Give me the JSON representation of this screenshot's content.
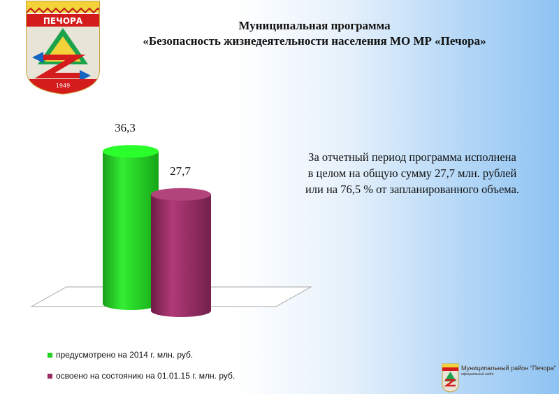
{
  "header": {
    "emblem_text": "ПЕЧОРА",
    "emblem_year": "1949",
    "title_line1": "Муниципальная программа",
    "title_line2": "«Безопасность жизнедеятельности населения  МО МР «Печора»"
  },
  "chart_data": {
    "type": "bar",
    "style": "3d-cylinder",
    "categories": [
      "предусмотрено на 2014 г. млн. руб.",
      "освоено на состоянию на 01.01.15 г. млн. руб."
    ],
    "values": [
      36.3,
      27.7
    ],
    "value_labels": [
      "36,3",
      "27,7"
    ],
    "colors": [
      "#22d022",
      "#9b2a63"
    ],
    "ylim": [
      0,
      38
    ],
    "legend_position": "bottom-left",
    "grid": false
  },
  "summary": {
    "line1": "За отчетный период  программа исполнена",
    "line2": "в целом  на общую сумму 27,7 млн. рублей",
    "line3": "или на  76,5 % от запланированного объема."
  },
  "legend": {
    "items": [
      "предусмотрено на 2014 г. млн. руб.",
      "освоено на состоянию на 01.01.15 г. млн. руб."
    ]
  },
  "footer": {
    "name": "Муниципальный район \"Печора\"",
    "subtitle": "официальный сайт"
  }
}
